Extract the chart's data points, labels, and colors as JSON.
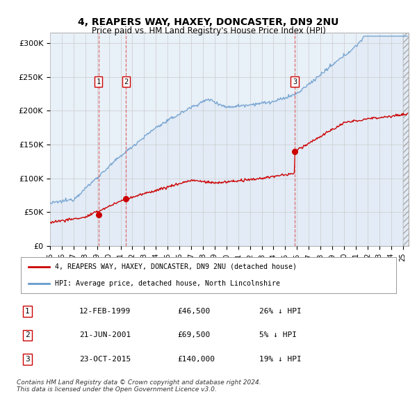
{
  "title": "4, REAPERS WAY, HAXEY, DONCASTER, DN9 2NU",
  "subtitle": "Price paid vs. HM Land Registry's House Price Index (HPI)",
  "yticks": [
    0,
    50000,
    100000,
    150000,
    200000,
    250000,
    300000
  ],
  "ytick_labels": [
    "£0",
    "£50K",
    "£100K",
    "£150K",
    "£200K",
    "£250K",
    "£300K"
  ],
  "xlim_start": 1995.0,
  "xlim_end": 2025.5,
  "ylim": [
    0,
    315000
  ],
  "sale_dates": [
    1999.12,
    2001.47,
    2015.81
  ],
  "sale_prices": [
    46500,
    69500,
    140000
  ],
  "sale_labels": [
    "1",
    "2",
    "3"
  ],
  "legend_red": "4, REAPERS WAY, HAXEY, DONCASTER, DN9 2NU (detached house)",
  "legend_blue": "HPI: Average price, detached house, North Lincolnshire",
  "table_data": [
    [
      "1",
      "12-FEB-1999",
      "£46,500",
      "26% ↓ HPI"
    ],
    [
      "2",
      "21-JUN-2001",
      "£69,500",
      "5% ↓ HPI"
    ],
    [
      "3",
      "23-OCT-2015",
      "£140,000",
      "19% ↓ HPI"
    ]
  ],
  "footnote1": "Contains HM Land Registry data © Crown copyright and database right 2024.",
  "footnote2": "This data is licensed under the Open Government Licence v3.0.",
  "background_color": "#ffffff",
  "plot_bg_color": "#e8f0f8",
  "grid_color": "#cccccc",
  "red_color": "#cc0000",
  "blue_color": "#6699cc",
  "blue_fill_color": "#c8d8ee",
  "dashed_red": "#dd4444"
}
